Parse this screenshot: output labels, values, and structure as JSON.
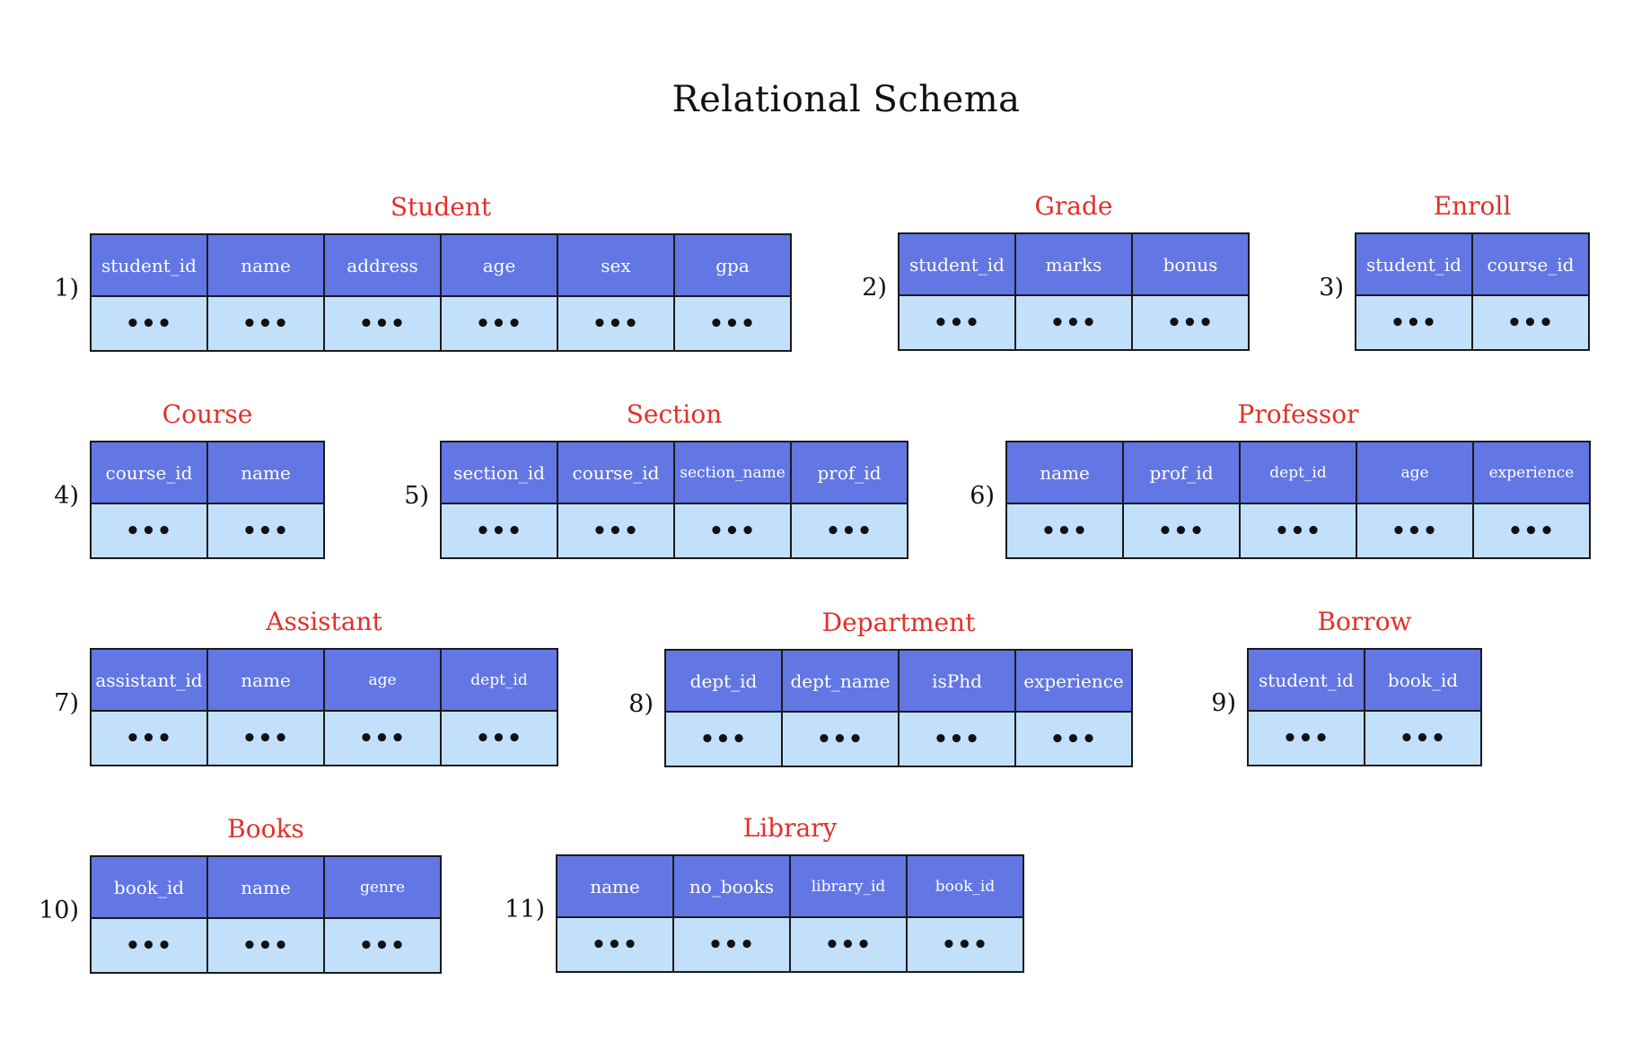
{
  "title": "Relational Schema",
  "colors": {
    "title_red": "#e0312a",
    "header_blue": "#6276e4",
    "cell_light_blue": "#c3e0fa",
    "border": "#1a1a1a"
  },
  "placeholder": "...",
  "schemas": [
    {
      "number": "1)",
      "name": "Student",
      "columns": [
        "student_id",
        "name",
        "address",
        "age",
        "sex",
        "gpa"
      ]
    },
    {
      "number": "2)",
      "name": "Grade",
      "columns": [
        "student_id",
        "marks",
        "bonus"
      ]
    },
    {
      "number": "3)",
      "name": "Enroll",
      "columns": [
        "student_id",
        "course_id"
      ]
    },
    {
      "number": "4)",
      "name": "Course",
      "columns": [
        "course_id",
        "name"
      ]
    },
    {
      "number": "5)",
      "name": "Section",
      "columns": [
        "section_id",
        "course_id",
        "section_name",
        "prof_id"
      ]
    },
    {
      "number": "6)",
      "name": "Professor",
      "columns": [
        "name",
        "prof_id",
        "dept_id",
        "age",
        "experience"
      ]
    },
    {
      "number": "7)",
      "name": "Assistant",
      "columns": [
        "assistant_id",
        "name",
        "age",
        "dept_id"
      ]
    },
    {
      "number": "8)",
      "name": "Department",
      "columns": [
        "dept_id",
        "dept_name",
        "isPhd",
        "experience"
      ]
    },
    {
      "number": "9)",
      "name": "Borrow",
      "columns": [
        "student_id",
        "book_id"
      ]
    },
    {
      "number": "10)",
      "name": "Books",
      "columns": [
        "book_id",
        "name",
        "genre"
      ]
    },
    {
      "number": "11)",
      "name": "Library",
      "columns": [
        "name",
        "no_books",
        "library_id",
        "book_id"
      ]
    }
  ]
}
